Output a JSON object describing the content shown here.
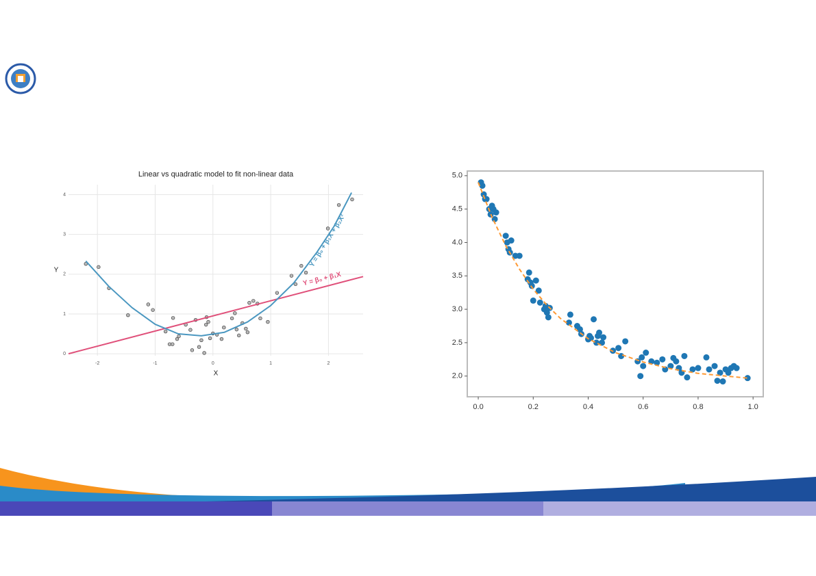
{
  "chart_data": [
    {
      "type": "scatter",
      "title": "Linear vs quadratic model to fit non-linear data",
      "x_label": "X",
      "y_label": "Y",
      "xlim": [
        -2.5,
        2.6
      ],
      "ylim": [
        -0.05,
        4.25
      ],
      "xticks": [
        -2,
        -1,
        0,
        1,
        2
      ],
      "yticks": [
        0,
        1,
        2,
        3,
        4
      ],
      "grid": true,
      "frame": false,
      "series": [
        {
          "kind": "points",
          "color": "#b8b8b8",
          "x": [
            -2.2,
            -1.98,
            -1.8,
            -1.47,
            -1.12,
            -1.04,
            -0.82,
            -0.69,
            -0.75,
            -0.7,
            -0.62,
            -0.59,
            -0.47,
            -0.39,
            -0.36,
            -0.3,
            -0.24,
            -0.2,
            -0.15,
            -0.12,
            -0.11,
            -0.08,
            -0.05,
            0,
            0.07,
            0.15,
            0.19,
            0.33,
            0.38,
            0.41,
            0.45,
            0.51,
            0.57,
            0.6,
            0.63,
            0.7,
            0.77,
            0.82,
            0.95,
            1.11,
            1.36,
            1.43,
            1.53,
            1.61,
            1.99,
            2.18,
            2.41
          ],
          "values": [
            2.26,
            2.18,
            1.65,
            0.97,
            1.24,
            1.1,
            0.56,
            0.9,
            0.24,
            0.24,
            0.37,
            0.44,
            0.73,
            0.6,
            0.09,
            0.85,
            0.17,
            0.34,
            0.02,
            0.73,
            0.92,
            0.8,
            0.39,
            0.51,
            0.48,
            0.37,
            0.66,
            0.89,
            1.02,
            0.61,
            0.46,
            0.77,
            0.63,
            0.54,
            1.28,
            1.33,
            1.26,
            0.89,
            0.8,
            1.53,
            1.96,
            1.75,
            2.21,
            2.04,
            3.15,
            3.74,
            3.88
          ]
        },
        {
          "kind": "line",
          "color": "#e0507a",
          "annotation": "Y = β₀ + β₁X",
          "x": [
            -2.5,
            2.6
          ],
          "values": [
            0,
            1.94
          ]
        },
        {
          "kind": "line",
          "color": "#4a97c0",
          "annotation": "Y = β₀ + β₁X + β₂X²",
          "x": [
            -2.2,
            -1.8,
            -1.4,
            -1,
            -0.6,
            -0.2,
            0.2,
            0.6,
            1,
            1.4,
            1.8,
            2.1,
            2.4
          ],
          "values": [
            2.33,
            1.69,
            1.16,
            0.74,
            0.5,
            0.45,
            0.54,
            0.8,
            1.21,
            1.78,
            2.55,
            3.21,
            4.05
          ]
        }
      ]
    },
    {
      "type": "scatter",
      "xlim": [
        -0.04,
        1.037
      ],
      "ylim": [
        1.69,
        5.07
      ],
      "xticks": [
        {
          "value": 0,
          "label": "0.0"
        },
        0.2,
        0.4,
        0.6,
        0.8,
        {
          "value": 1,
          "label": "1.0"
        }
      ],
      "yticks": [
        {
          "value": 2,
          "label": "2.0"
        },
        2.5,
        {
          "value": 3,
          "label": "3.0"
        },
        3.5,
        {
          "value": 4,
          "label": "4.0"
        },
        4.5,
        {
          "value": 5,
          "label": "5.0"
        }
      ],
      "grid": false,
      "frame": true,
      "series": [
        {
          "kind": "points",
          "color": "#1f77b4",
          "x": [
            0.01,
            0.015,
            0.02,
            0.025,
            0.03,
            0.04,
            0.045,
            0.05,
            0.055,
            0.06,
            0.065,
            0.1,
            0.105,
            0.11,
            0.115,
            0.12,
            0.135,
            0.15,
            0.18,
            0.185,
            0.19,
            0.195,
            0.2,
            0.21,
            0.22,
            0.225,
            0.24,
            0.245,
            0.25,
            0.255,
            0.26,
            0.33,
            0.335,
            0.36,
            0.37,
            0.375,
            0.4,
            0.405,
            0.41,
            0.42,
            0.43,
            0.435,
            0.44,
            0.45,
            0.455,
            0.49,
            0.51,
            0.52,
            0.535,
            0.58,
            0.59,
            0.595,
            0.6,
            0.61,
            0.63,
            0.65,
            0.67,
            0.68,
            0.7,
            0.71,
            0.72,
            0.73,
            0.74,
            0.75,
            0.76,
            0.78,
            0.8,
            0.83,
            0.84,
            0.86,
            0.87,
            0.88,
            0.89,
            0.9,
            0.91,
            0.92,
            0.93,
            0.94,
            0.98
          ],
          "values": [
            4.9,
            4.85,
            4.72,
            4.65,
            4.65,
            4.5,
            4.42,
            4.55,
            4.5,
            4.35,
            4.45,
            4.1,
            4.0,
            3.9,
            3.85,
            4.03,
            3.8,
            3.8,
            3.45,
            3.55,
            3.4,
            3.35,
            3.13,
            3.43,
            3.28,
            3.1,
            3.0,
            3.05,
            2.95,
            2.88,
            3.02,
            2.8,
            2.92,
            2.75,
            2.7,
            2.63,
            2.55,
            2.6,
            2.57,
            2.85,
            2.5,
            2.6,
            2.65,
            2.5,
            2.58,
            2.38,
            2.42,
            2.3,
            2.52,
            2.22,
            2.0,
            2.28,
            2.15,
            2.35,
            2.22,
            2.2,
            2.25,
            2.1,
            2.15,
            2.27,
            2.22,
            2.12,
            2.05,
            2.3,
            1.98,
            2.1,
            2.12,
            2.28,
            2.1,
            2.15,
            1.93,
            2.05,
            1.92,
            2.1,
            2.05,
            2.12,
            2.15,
            2.12,
            1.97
          ]
        },
        {
          "kind": "line",
          "color": "#ff9933",
          "style": "dashed",
          "x": [
            0,
            0.05,
            0.1,
            0.15,
            0.2,
            0.25,
            0.3,
            0.4,
            0.5,
            0.6,
            0.7,
            0.8,
            0.9,
            0.98
          ],
          "values": [
            4.9,
            4.38,
            3.95,
            3.6,
            3.3,
            3.06,
            2.86,
            2.56,
            2.35,
            2.21,
            2.11,
            2.04,
            2.0,
            1.97
          ]
        }
      ]
    }
  ]
}
